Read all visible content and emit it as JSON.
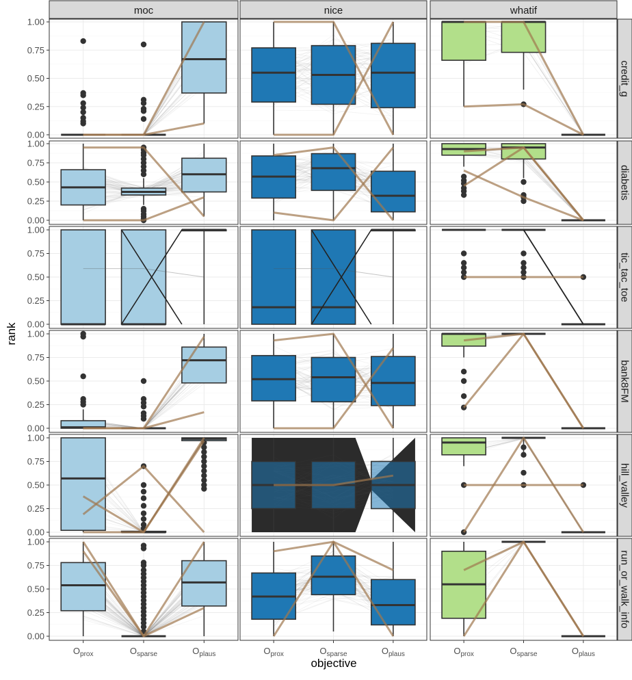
{
  "chart_data": {
    "type": "box",
    "xlabel": "objective",
    "ylabel": "rank",
    "x_categories": [
      {
        "base": "O",
        "sub": "prox"
      },
      {
        "base": "O",
        "sub": "sparse"
      },
      {
        "base": "O",
        "sub": "plaus"
      }
    ],
    "y_ticks": [
      "0.00",
      "0.25",
      "0.50",
      "0.75",
      "1.00"
    ],
    "ylim": [
      0,
      1
    ],
    "grid": true,
    "columns": [
      "moc",
      "nice",
      "whatif"
    ],
    "rows": [
      "credit_g",
      "diabetis",
      "tic_tac_toe",
      "bank8FM",
      "hill_valley",
      "run_or_walk_info"
    ],
    "colors": {
      "moc": "#a6cee3",
      "nice": "#1f78b4",
      "whatif": "#b2df8a",
      "box_border": "#333333",
      "line_gray": "#555555",
      "line_brown": "#a0784e",
      "strip_fill": "#d9d9d9"
    },
    "panels": {
      "credit_g": {
        "moc": {
          "boxes": [
            [
              0,
              0,
              0,
              0,
              0
            ],
            [
              0,
              0,
              0,
              0,
              0
            ],
            [
              0.1,
              0.37,
              0.67,
              1,
              1
            ]
          ],
          "outliers": [
            [
              0.83,
              0.37,
              0.35,
              0.28,
              0.24,
              0.2,
              0.15,
              0.12,
              0.1
            ],
            [
              0.8,
              0.31,
              0.28,
              0.23,
              0.21,
              0.14
            ],
            []
          ],
          "highlights": [
            [
              0,
              0,
              1
            ],
            [
              0,
              0,
              0.1
            ]
          ],
          "bg_lines": 25,
          "bg_opacity": 0.1
        },
        "nice": {
          "boxes": [
            [
              0,
              0.29,
              0.55,
              0.77,
              1
            ],
            [
              0,
              0.27,
              0.53,
              0.79,
              1
            ],
            [
              0,
              0.24,
              0.55,
              0.81,
              1
            ]
          ],
          "outliers": [
            [],
            [],
            []
          ],
          "highlights": [
            [
              1,
              1,
              0
            ],
            [
              0,
              0,
              1
            ]
          ],
          "bg_lines": 60,
          "bg_opacity": 0.08
        },
        "whatif": {
          "boxes": [
            [
              0.25,
              0.66,
              1,
              1,
              1
            ],
            [
              0.4,
              0.73,
              1,
              1,
              1
            ],
            [
              0,
              0,
              0,
              0,
              0
            ]
          ],
          "outliers": [
            [],
            [
              0.27
            ],
            []
          ],
          "highlights": [
            [
              1,
              1,
              0
            ],
            [
              0.25,
              0.27,
              0
            ]
          ],
          "bg_lines": 10,
          "bg_opacity": 0.1
        }
      },
      "diabetis": {
        "moc": {
          "boxes": [
            [
              0,
              0.2,
              0.43,
              0.66,
              1
            ],
            [
              0.2,
              0.33,
              0.37,
              0.42,
              0.55
            ],
            [
              0.05,
              0.37,
              0.6,
              0.81,
              1
            ]
          ],
          "outliers": [
            [],
            [
              0.95,
              0.92,
              0.88,
              0.85,
              0.8,
              0.75,
              0.7,
              0.65,
              0.6,
              0.15,
              0.12,
              0.08,
              0.05,
              0.02,
              0
            ],
            []
          ],
          "highlights": [
            [
              0.95,
              0.95,
              0.05
            ],
            [
              0,
              0,
              0.3
            ]
          ],
          "bg_lines": 70,
          "bg_opacity": 0.07
        },
        "nice": {
          "boxes": [
            [
              0,
              0.29,
              0.57,
              0.84,
              1
            ],
            [
              0,
              0.39,
              0.68,
              0.87,
              1
            ],
            [
              0,
              0.11,
              0.32,
              0.64,
              1
            ]
          ],
          "outliers": [
            [],
            [],
            []
          ],
          "highlights": [
            [
              0.85,
              0.95,
              0
            ],
            [
              0.1,
              0,
              0.95
            ]
          ],
          "bg_lines": 60,
          "bg_opacity": 0.08
        },
        "whatif": {
          "boxes": [
            [
              0.7,
              0.85,
              0.93,
              1,
              1
            ],
            [
              0.55,
              0.8,
              0.95,
              1,
              1
            ],
            [
              0,
              0,
              0,
              0,
              0
            ]
          ],
          "outliers": [
            [
              0.57,
              0.52,
              0.48,
              0.42,
              0.38,
              0.33
            ],
            [
              0.5,
              0.33,
              0.3,
              0.25
            ],
            []
          ],
          "highlights": [
            [
              0.9,
              0.95,
              0
            ],
            [
              0.65,
              0.3,
              0
            ],
            [
              0.45,
              0.95,
              0
            ]
          ],
          "bg_lines": 25,
          "bg_opacity": 0.08
        },
        "moc_extra": 0
      },
      "tic_tac_toe": {
        "moc": {
          "boxes": [
            [
              0,
              0,
              0,
              1,
              1
            ],
            [
              0,
              0,
              0,
              1,
              1
            ],
            [
              0,
              0.99,
              1,
              1,
              1
            ]
          ],
          "outliers": [
            [],
            [],
            []
          ],
          "highlights": [],
          "dark_x": true,
          "bg_lines": 0,
          "bg_opacity": 0.1
        },
        "nice": {
          "boxes": [
            [
              0,
              0,
              0.18,
              1,
              1
            ],
            [
              0,
              0,
              0.18,
              1,
              1
            ],
            [
              0,
              0.99,
              1,
              1,
              1
            ]
          ],
          "outliers": [
            [],
            [],
            []
          ],
          "highlights": [],
          "dark_x": true,
          "bg_lines": 0,
          "bg_opacity": 0.1
        },
        "whatif": {
          "boxes": [
            [
              1,
              1,
              1,
              1,
              1
            ],
            [
              1,
              1,
              1,
              1,
              1
            ],
            [
              0,
              0,
              0,
              0,
              0
            ]
          ],
          "outliers": [
            [
              0.75,
              0.65,
              0.6,
              0.55,
              0.5
            ],
            [
              0.75,
              0.65,
              0.6,
              0.55,
              0.5
            ],
            [
              0.5
            ]
          ],
          "highlights": [
            [
              0.5,
              0.5,
              0.5
            ]
          ],
          "dark_steep": true,
          "bg_lines": 8,
          "bg_opacity": 0.1
        }
      },
      "bank8FM": {
        "moc": {
          "boxes": [
            [
              0,
              0,
              0.01,
              0.08,
              0.2
            ],
            [
              0,
              0,
              0,
              0,
              0
            ],
            [
              0.48,
              0.48,
              0.72,
              0.86,
              1
            ]
          ],
          "outliers": [
            [
              1,
              0.97,
              0.55,
              0.31,
              0.28,
              0.25
            ],
            [
              0.5,
              0.31,
              0.27,
              0.23,
              0.16,
              0.13,
              0.1
            ],
            []
          ],
          "highlights": [
            [
              0,
              0,
              0.97
            ],
            [
              0,
              0,
              0.17
            ]
          ],
          "bg_lines": 25,
          "bg_opacity": 0.1
        },
        "nice": {
          "boxes": [
            [
              0,
              0.29,
              0.52,
              0.77,
              1
            ],
            [
              0,
              0.28,
              0.54,
              0.75,
              1
            ],
            [
              0,
              0.24,
              0.48,
              0.76,
              1
            ]
          ],
          "outliers": [
            [],
            [],
            []
          ],
          "highlights": [
            [
              0.93,
              1,
              0
            ],
            [
              0,
              0,
              0.85
            ]
          ],
          "bg_lines": 60,
          "bg_opacity": 0.08
        },
        "whatif": {
          "boxes": [
            [
              0.75,
              0.87,
              1,
              1,
              1
            ],
            [
              1,
              1,
              1,
              1,
              1
            ],
            [
              0,
              0,
              0,
              0,
              0
            ]
          ],
          "outliers": [
            [
              0.6,
              0.5,
              0.34,
              0.22
            ],
            [],
            []
          ],
          "highlights": [
            [
              0.93,
              1,
              0
            ],
            [
              0.22,
              1,
              0
            ]
          ],
          "bg_lines": 8,
          "bg_opacity": 0.1
        }
      },
      "hill_valley": {
        "moc": {
          "boxes": [
            [
              0,
              0.02,
              0.57,
              1,
              1
            ],
            [
              0,
              0,
              0,
              0.01,
              0.02
            ],
            [
              0.97,
              0.97,
              0.99,
              1,
              1
            ]
          ],
          "outliers": [
            [],
            [
              0.7,
              0.5,
              0.43,
              0.36,
              0.28,
              0.2,
              0.14,
              0.08,
              0.04
            ],
            [
              0.95,
              0.9,
              0.85,
              0.8,
              0.75,
              0.7,
              0.65,
              0.6,
              0.55,
              0.5,
              0.46
            ]
          ],
          "highlights": [
            [
              0.38,
              0,
              1
            ],
            [
              0.19,
              0.7,
              0
            ],
            [
              0,
              0,
              0.97
            ]
          ],
          "bg_lines": 30,
          "bg_opacity": 0.07
        },
        "nice": {
          "boxes": [
            [
              0,
              0.25,
              0.5,
              0.75,
              1
            ],
            [
              0,
              0.25,
              0.5,
              0.75,
              1
            ],
            [
              0,
              0.25,
              0.5,
              0.75,
              1
            ]
          ],
          "outliers": [
            [],
            [],
            []
          ],
          "highlights": [
            [
              0.5,
              0.5,
              0.6
            ]
          ],
          "dense_nice": true,
          "bg_lines": 40,
          "bg_opacity": 0.1
        },
        "whatif": {
          "boxes": [
            [
              0.7,
              0.82,
              0.95,
              1,
              1
            ],
            [
              0.85,
              1,
              1,
              1,
              1
            ],
            [
              0,
              0,
              0,
              0,
              0
            ]
          ],
          "outliers": [
            [
              0.5,
              0
            ],
            [
              0.9,
              0.82,
              0.63,
              0.5
            ],
            [
              0.5
            ]
          ],
          "highlights": [
            [
              0.5,
              0.5,
              0.5
            ],
            [
              0,
              1,
              0
            ]
          ],
          "bg_lines": 10,
          "bg_opacity": 0.1
        }
      },
      "run_or_walk_info": {
        "moc": {
          "boxes": [
            [
              0,
              0.27,
              0.54,
              0.78,
              1
            ],
            [
              0,
              0,
              0,
              0,
              0
            ],
            [
              0,
              0.32,
              0.57,
              0.8,
              1
            ]
          ],
          "outliers": [
            [],
            [
              0.96,
              0.93,
              0.78,
              0.75,
              0.7,
              0.66,
              0.62,
              0.58,
              0.54,
              0.5,
              0.46,
              0.42,
              0.38,
              0.34,
              0.3,
              0.26,
              0.22,
              0.18,
              0.14,
              0.1,
              0.05
            ],
            []
          ],
          "highlights": [
            [
              1,
              0,
              1
            ],
            [
              0.9,
              0,
              0.3
            ]
          ],
          "bg_lines": 60,
          "bg_opacity": 0.08
        },
        "nice": {
          "boxes": [
            [
              0,
              0.18,
              0.42,
              0.67,
              1
            ],
            [
              0.05,
              0.44,
              0.63,
              0.85,
              1
            ],
            [
              0,
              0.12,
              0.33,
              0.6,
              1
            ]
          ],
          "outliers": [
            [],
            [],
            []
          ],
          "highlights": [
            [
              0.9,
              1,
              0
            ],
            [
              0,
              1,
              0.7
            ]
          ],
          "bg_lines": 60,
          "bg_opacity": 0.08
        },
        "whatif": {
          "boxes": [
            [
              0,
              0.19,
              0.55,
              0.9,
              1
            ],
            [
              1,
              1,
              1,
              1,
              1
            ],
            [
              0,
              0,
              0,
              0,
              0
            ]
          ],
          "outliers": [
            [],
            [],
            []
          ],
          "highlights": [
            [
              0.7,
              1,
              0
            ],
            [
              0,
              1,
              0
            ]
          ],
          "bg_lines": 8,
          "bg_opacity": 0.1
        }
      }
    }
  }
}
